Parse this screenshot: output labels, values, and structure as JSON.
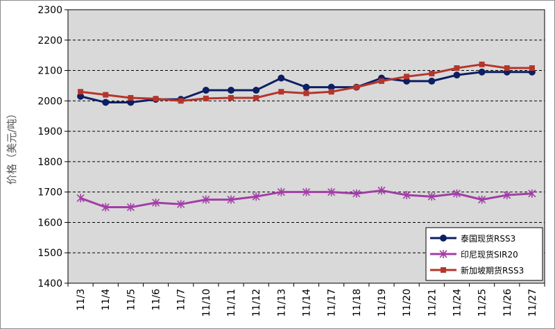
{
  "chart_data": {
    "type": "line",
    "title": "",
    "xlabel": "",
    "ylabel": "价格（美元/吨）",
    "ylim": [
      1400,
      2300
    ],
    "yticks": [
      1400,
      1500,
      1600,
      1700,
      1800,
      1900,
      2000,
      2100,
      2200,
      2300
    ],
    "grid": "horizontal dashed",
    "legend_position": "bottom-right",
    "categories": [
      "11/3",
      "11/4",
      "11/5",
      "11/6",
      "11/7",
      "11/10",
      "11/11",
      "11/12",
      "11/13",
      "11/14",
      "11/17",
      "11/18",
      "11/19",
      "11/20",
      "11/21",
      "11/24",
      "11/25",
      "11/26",
      "11/27"
    ],
    "series": [
      {
        "name": "泰国现货RSS3",
        "color": "#0d1f63",
        "marker": "circle",
        "values": [
          2015,
          1995,
          1995,
          2005,
          2005,
          2035,
          2035,
          2035,
          2075,
          2045,
          2045,
          2045,
          2075,
          2065,
          2065,
          2085,
          2095,
          2095,
          2095
        ]
      },
      {
        "name": "印尼现货SIR20",
        "color": "#a23ea6",
        "marker": "star",
        "values": [
          1680,
          1650,
          1650,
          1665,
          1660,
          1675,
          1675,
          1685,
          1700,
          1700,
          1700,
          1695,
          1705,
          1690,
          1685,
          1695,
          1675,
          1690,
          1695
        ]
      },
      {
        "name": "新加坡期货RSS3",
        "color": "#b5352b",
        "marker": "square",
        "values": [
          2030,
          2020,
          2010,
          2007,
          2000,
          2008,
          2010,
          2010,
          2030,
          2025,
          2030,
          2045,
          2065,
          2080,
          2090,
          2108,
          2120,
          2108,
          2108
        ]
      }
    ]
  }
}
